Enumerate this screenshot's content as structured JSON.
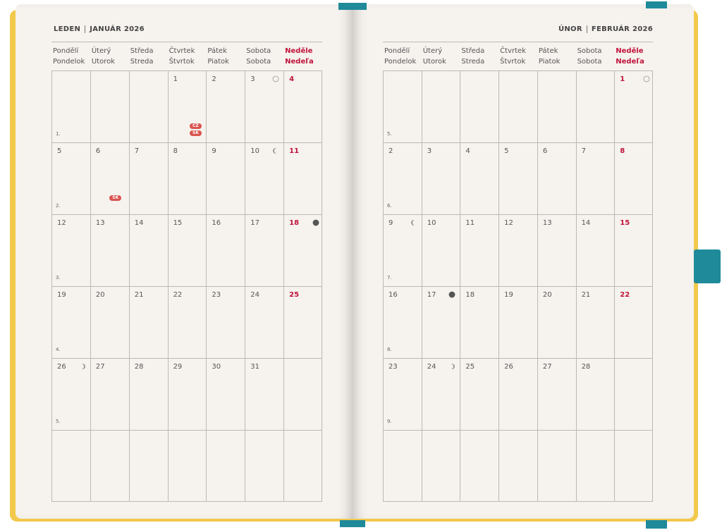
{
  "pages": [
    {
      "header": {
        "month_cz": "LEDEN",
        "month_sk_year": "JANUÁR 2026"
      },
      "weekdays": [
        {
          "cz": "Pondělí",
          "sk": "Pondelok"
        },
        {
          "cz": "Úterý",
          "sk": "Utorok"
        },
        {
          "cz": "Středa",
          "sk": "Streda"
        },
        {
          "cz": "Čtvrtek",
          "sk": "Štvrtok"
        },
        {
          "cz": "Pátek",
          "sk": "Piatok"
        },
        {
          "cz": "Sobota",
          "sk": "Sobota"
        },
        {
          "cz": "Neděle",
          "sk": "Nedeľa"
        }
      ],
      "weeks": [
        {
          "label": "1.",
          "days": [
            null,
            null,
            null,
            {
              "day": 1,
              "badges": [
                "CZ",
                "SK"
              ]
            },
            {
              "day": 2
            },
            {
              "day": 3,
              "moon": "full"
            },
            {
              "day": 4
            }
          ]
        },
        {
          "label": "2.",
          "days": [
            {
              "day": 5
            },
            {
              "day": 6,
              "badges": [
                "SK"
              ]
            },
            {
              "day": 7
            },
            {
              "day": 8
            },
            {
              "day": 9
            },
            {
              "day": 10,
              "moon": "last"
            },
            {
              "day": 11
            }
          ]
        },
        {
          "label": "3.",
          "days": [
            {
              "day": 12
            },
            {
              "day": 13
            },
            {
              "day": 14
            },
            {
              "day": 15
            },
            {
              "day": 16
            },
            {
              "day": 17
            },
            {
              "day": 18,
              "moon": "new"
            }
          ]
        },
        {
          "label": "4.",
          "days": [
            {
              "day": 19
            },
            {
              "day": 20
            },
            {
              "day": 21
            },
            {
              "day": 22
            },
            {
              "day": 23
            },
            {
              "day": 24
            },
            {
              "day": 25
            }
          ]
        },
        {
          "label": "5.",
          "days": [
            {
              "day": 26,
              "moon": "first"
            },
            {
              "day": 27
            },
            {
              "day": 28
            },
            {
              "day": 29
            },
            {
              "day": 30
            },
            {
              "day": 31
            },
            null
          ]
        }
      ]
    },
    {
      "header": {
        "month_cz": "ÚNOR",
        "month_sk_year": "FEBRUÁR 2026"
      },
      "weekdays": [
        {
          "cz": "Pondělí",
          "sk": "Pondelok"
        },
        {
          "cz": "Úterý",
          "sk": "Utorok"
        },
        {
          "cz": "Středa",
          "sk": "Streda"
        },
        {
          "cz": "Čtvrtek",
          "sk": "Štvrtok"
        },
        {
          "cz": "Pátek",
          "sk": "Piatok"
        },
        {
          "cz": "Sobota",
          "sk": "Sobota"
        },
        {
          "cz": "Neděle",
          "sk": "Nedeľa"
        }
      ],
      "weeks": [
        {
          "label": "5.",
          "days": [
            null,
            null,
            null,
            null,
            null,
            null,
            {
              "day": 1,
              "moon": "full"
            }
          ]
        },
        {
          "label": "6.",
          "days": [
            {
              "day": 2
            },
            {
              "day": 3
            },
            {
              "day": 4
            },
            {
              "day": 5
            },
            {
              "day": 6
            },
            {
              "day": 7
            },
            {
              "day": 8
            }
          ]
        },
        {
          "label": "7.",
          "days": [
            {
              "day": 9,
              "moon": "last"
            },
            {
              "day": 10
            },
            {
              "day": 11
            },
            {
              "day": 12
            },
            {
              "day": 13
            },
            {
              "day": 14
            },
            {
              "day": 15
            }
          ]
        },
        {
          "label": "8.",
          "days": [
            {
              "day": 16
            },
            {
              "day": 17,
              "moon": "new"
            },
            {
              "day": 18
            },
            {
              "day": 19
            },
            {
              "day": 20
            },
            {
              "day": 21
            },
            {
              "day": 22
            }
          ]
        },
        {
          "label": "9.",
          "days": [
            {
              "day": 23
            },
            {
              "day": 24,
              "moon": "first"
            },
            {
              "day": 25
            },
            {
              "day": 26
            },
            {
              "day": 27
            },
            {
              "day": 28
            },
            null
          ]
        }
      ]
    }
  ]
}
